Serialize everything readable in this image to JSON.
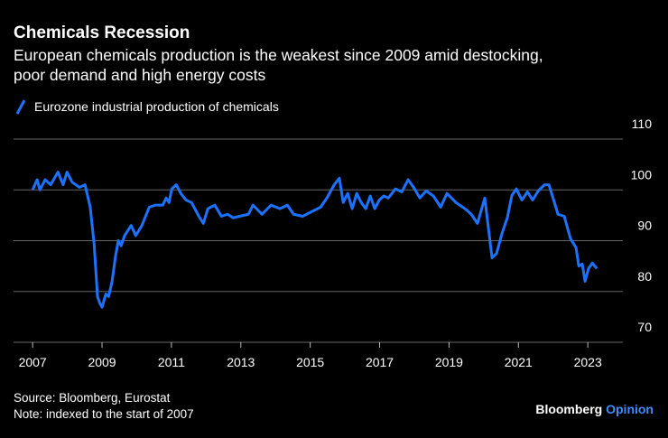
{
  "chart_data": {
    "type": "line",
    "title": "Chemicals Recession",
    "subtitle": "European chemicals production is the weakest since 2009 amid destocking, poor demand and high energy costs",
    "source": "Source: Bloomberg, Eurostat",
    "note": "Note: indexed to the start of 2007",
    "brand": "Bloomberg",
    "brand_suffix": "Opinion",
    "xlim": [
      2006.45,
      2024.01
    ],
    "xticks": [
      2007,
      2009,
      2011,
      2013,
      2015,
      2017,
      2019,
      2021,
      2023
    ],
    "ylim": [
      70,
      110
    ],
    "yticks": [
      70,
      80,
      90,
      100,
      110
    ],
    "grid": true,
    "series": [
      {
        "name": "Eurozone industrial production of chemicals",
        "color": "#1a73ff",
        "x": [
          2007.0,
          2007.13,
          2007.21,
          2007.36,
          2007.52,
          2007.73,
          2007.88,
          2007.99,
          2008.14,
          2008.35,
          2008.51,
          2008.66,
          2008.77,
          2008.87,
          2008.93,
          2009.0,
          2009.11,
          2009.19,
          2009.29,
          2009.39,
          2009.47,
          2009.55,
          2009.65,
          2009.84,
          2009.97,
          2010.15,
          2010.36,
          2010.54,
          2010.75,
          2010.85,
          2010.93,
          2011.01,
          2011.14,
          2011.27,
          2011.42,
          2011.58,
          2011.79,
          2011.92,
          2012.05,
          2012.25,
          2012.44,
          2012.62,
          2012.78,
          2012.96,
          2013.22,
          2013.35,
          2013.61,
          2013.87,
          2014.13,
          2014.34,
          2014.52,
          2014.78,
          2015.04,
          2015.3,
          2015.48,
          2015.69,
          2015.84,
          2015.95,
          2016.08,
          2016.21,
          2016.34,
          2016.47,
          2016.6,
          2016.73,
          2016.86,
          2016.99,
          2017.12,
          2017.25,
          2017.46,
          2017.64,
          2017.82,
          2017.98,
          2018.16,
          2018.34,
          2018.55,
          2018.76,
          2018.94,
          2019.2,
          2019.46,
          2019.64,
          2019.82,
          2020.03,
          2020.24,
          2020.37,
          2020.53,
          2020.68,
          2020.81,
          2020.94,
          2021.1,
          2021.26,
          2021.41,
          2021.57,
          2021.75,
          2021.88,
          2021.98,
          2022.14,
          2022.32,
          2022.5,
          2022.66,
          2022.74,
          2022.84,
          2022.92,
          2023.02,
          2023.13,
          2023.26
        ],
        "values": [
          100,
          102,
          100,
          102,
          101,
          103.5,
          101,
          103.5,
          101.5,
          100.5,
          101,
          96.6,
          89.5,
          79,
          77.8,
          76.9,
          79.5,
          79,
          82,
          87,
          90,
          89,
          91,
          93,
          91,
          93,
          96.6,
          97,
          97,
          98.4,
          97.5,
          100.2,
          101,
          99.3,
          98,
          97.5,
          94.8,
          93.4,
          96.3,
          97,
          94.8,
          95.2,
          94.5,
          94.8,
          95.2,
          97,
          95.2,
          97,
          96.3,
          97,
          95.2,
          94.8,
          95.7,
          96.6,
          98.4,
          101,
          102.3,
          97.5,
          99.3,
          96.3,
          99.3,
          97.5,
          96.3,
          98.8,
          96.3,
          98,
          98.8,
          98.4,
          100.2,
          99.6,
          102,
          100.5,
          98.4,
          99.8,
          98.8,
          96.6,
          99.3,
          97.5,
          96.3,
          95.2,
          93.4,
          98.4,
          86.6,
          87.5,
          91.5,
          94.5,
          98.9,
          100.2,
          98,
          99.6,
          98,
          99.8,
          101,
          101,
          98.8,
          95.2,
          94.8,
          90.4,
          88.6,
          85,
          85.4,
          82,
          84.5,
          85.6,
          84.5
        ]
      }
    ]
  }
}
